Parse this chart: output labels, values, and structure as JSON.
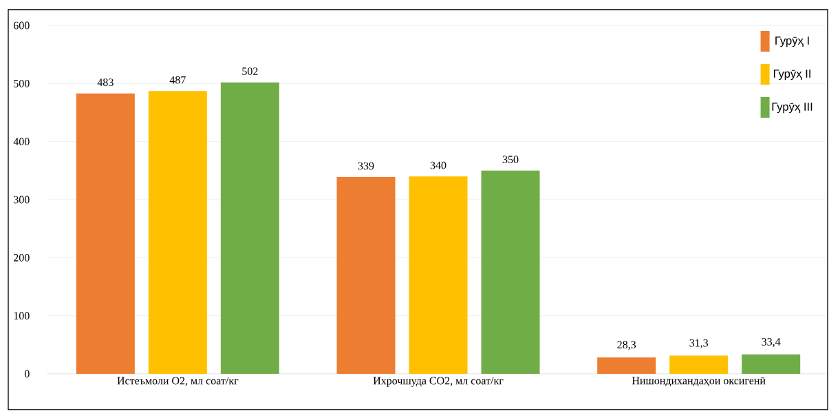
{
  "chart_data": {
    "type": "bar",
    "categories": [
      "Истеъмоли O2, мл соат/кг",
      "Ихрочшуда CO2, мл соат/кг",
      "Нишондихандаҳои оксигенӣ"
    ],
    "series": [
      {
        "name": "Гурӯҳ  I",
        "color": "#ed7d31",
        "values": [
          483,
          339,
          28.3
        ],
        "value_labels": [
          "483",
          "339",
          "28,3"
        ]
      },
      {
        "name": "Гурӯҳ  II",
        "color": "#ffc000",
        "values": [
          487,
          340,
          31.3
        ],
        "value_labels": [
          "487",
          "340",
          "31,3"
        ]
      },
      {
        "name": "Гурӯҳ  III",
        "color": "#70ad47",
        "values": [
          502,
          350,
          33.4
        ],
        "value_labels": [
          "502",
          "350",
          "33,4"
        ]
      }
    ],
    "ylim": [
      0,
      600
    ],
    "yticks": [
      0,
      100,
      200,
      300,
      400,
      500,
      600
    ],
    "grid": "y",
    "legend": "top right"
  }
}
